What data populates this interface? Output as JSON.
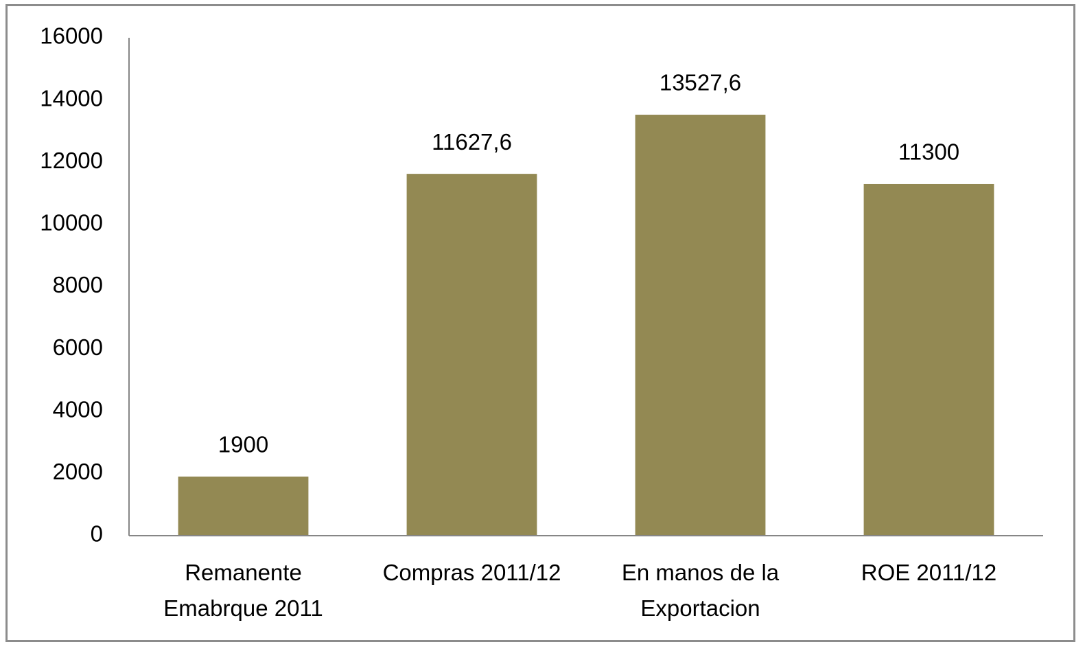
{
  "chart_data": {
    "type": "bar",
    "categories": [
      "Remanente\nEmabrque 2011",
      "Compras 2011/12",
      "En manos de la\nExportacion",
      "ROE 2011/12"
    ],
    "values": [
      1900,
      11627.6,
      13527.6,
      11300
    ],
    "value_labels": [
      "1900",
      "11627,6",
      "13527,6",
      "11300"
    ],
    "color": "#938953",
    "ylim": [
      0,
      16000
    ],
    "yticks": [
      0,
      2000,
      4000,
      6000,
      8000,
      10000,
      12000,
      14000,
      16000
    ],
    "grid": false
  }
}
